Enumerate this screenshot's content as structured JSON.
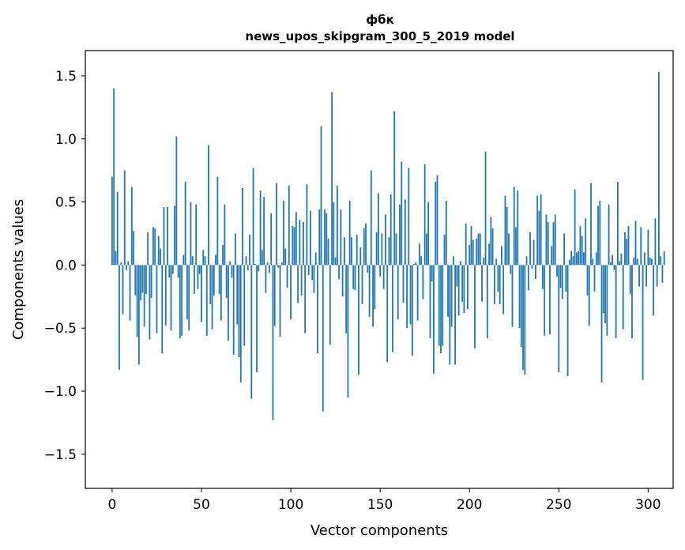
{
  "chart_data": {
    "type": "bar",
    "title": "фбк",
    "subtitle": "news_upos_skipgram_300_5_2019 model",
    "xlabel": "Vector components",
    "ylabel": "Components values",
    "xlim": [
      -15,
      314
    ],
    "ylim": [
      -1.77,
      1.7
    ],
    "xticks": [
      0,
      50,
      100,
      150,
      200,
      250,
      300
    ],
    "yticks": [
      -1.5,
      -1.0,
      -0.5,
      0.0,
      0.5,
      1.0,
      1.5
    ],
    "ytick_labels": [
      "−1.5",
      "−1.0",
      "−0.5",
      "0.0",
      "0.5",
      "1.0",
      "1.5"
    ],
    "bar_color": "#1f77b4",
    "values": [
      0.7,
      1.4,
      0.11,
      0.58,
      -0.83,
      0.02,
      -0.39,
      0.75,
      -0.04,
      0.03,
      -0.44,
      0.62,
      0.27,
      -0.24,
      -0.57,
      -0.79,
      -0.28,
      -0.22,
      -0.49,
      -0.23,
      0.26,
      -0.59,
      -0.26,
      0.3,
      0.29,
      -0.54,
      0.23,
      0.13,
      -0.7,
      0.46,
      -0.48,
      0.46,
      -0.1,
      -0.52,
      -0.07,
      0.47,
      1.02,
      -0.1,
      -0.58,
      -0.56,
      0.08,
      0.66,
      -0.43,
      -0.52,
      0.5,
      0.07,
      -0.23,
      0.48,
      -0.19,
      -0.07,
      -0.45,
      0.12,
      0.07,
      -0.56,
      0.95,
      -0.31,
      -0.51,
      -0.24,
      0.08,
      0.7,
      -0.23,
      -0.44,
      0.16,
      0.48,
      -0.26,
      -0.6,
      0.03,
      -0.1,
      -0.71,
      0.25,
      -0.47,
      -0.73,
      -0.93,
      0.61,
      -0.64,
      0.07,
      -0.04,
      0.24,
      -1.06,
      0.77,
      0.01,
      -0.85,
      -0.05,
      0.59,
      0.12,
      0.54,
      -0.22,
      0.02,
      -0.06,
      0.41,
      -1.23,
      -0.48,
      0.65,
      -0.02,
      -0.57,
      0.02,
      0.51,
      0.13,
      -0.18,
      0.63,
      -0.43,
      0.31,
      0.3,
      0.42,
      -0.3,
      0.36,
      -0.24,
      0.34,
      -0.54,
      0.64,
      -0.08,
      0.43,
      -0.12,
      -0.22,
      0.1,
      -0.7,
      0.44,
      1.1,
      -1.16,
      0.44,
      0.41,
      0.21,
      -0.63,
      1.37,
      0.5,
      0.06,
      0.63,
      -0.11,
      0.44,
      -0.25,
      0.22,
      -0.54,
      -1.05,
      0.51,
      0.22,
      -0.19,
      -0.2,
      0.24,
      -0.87,
      0.14,
      -0.31,
      0.29,
      0.33,
      -0.06,
      -0.41,
      0.75,
      -0.49,
      -0.35,
      0.26,
      0.57,
      -0.09,
      0.25,
      -0.19,
      0.4,
      -0.77,
      0.22,
      0.56,
      -0.69,
      1.22,
      0.25,
      -0.43,
      0.48,
      0.82,
      -0.3,
      0.52,
      -0.5,
      0.77,
      -0.47,
      -0.72,
      0.01,
      0.02,
      -0.44,
      0.17,
      0.07,
      -0.27,
      0.8,
      0.25,
      0.5,
      -0.58,
      -0.13,
      -0.86,
      0.66,
      0.71,
      -0.64,
      -0.7,
      -0.64,
      0.24,
      0.51,
      -0.41,
      -0.79,
      -0.49,
      0.07,
      -0.79,
      -0.17,
      -0.4,
      0.03,
      -0.29,
      -0.38,
      0.33,
      -0.35,
      0.16,
      0.31,
      0.2,
      -0.66,
      0.21,
      0.25,
      0.25,
      -0.29,
      0.06,
      0.9,
      -0.58,
      0.17,
      0.38,
      0.29,
      -0.31,
      0.05,
      -0.21,
      -0.31,
      0.15,
      -0.39,
      0.55,
      0.46,
      0.25,
      -0.07,
      -0.49,
      0.62,
      0.3,
      0.59,
      -0.5,
      -0.65,
      -0.83,
      -0.87,
      0.07,
      -0.2,
      0.26,
      -0.03,
      0.2,
      -0.11,
      0.55,
      0.43,
      0.56,
      -0.19,
      -0.56,
      0.4,
      0.34,
      -0.55,
      0.15,
      0.34,
      0.4,
      -0.09,
      -0.85,
      -0.18,
      -0.27,
      0.25,
      -0.21,
      -0.88,
      0.04,
      0.11,
      0.07,
      0.6,
      0.1,
      0.11,
      0.31,
      0.23,
      0.1,
      0.37,
      -0.24,
      -0.48,
      0.65,
      0.05,
      -0.21,
      0.1,
      0.47,
      0.51,
      -0.93,
      -0.38,
      -0.46,
      -0.56,
      0.48,
      0.02,
      0.08,
      -0.04,
      -0.58,
      0.66,
      0.03,
      0.09,
      -0.51,
      0.26,
      0.21,
      0.31,
      -0.23,
      -0.58,
      0.06,
      0.35,
      0.05,
      -0.17,
      0.3,
      -0.91,
      0.1,
      -0.17,
      0.28,
      0.06,
      0.05,
      -0.4,
      0.37,
      -0.17,
      1.53,
      0.07,
      -0.14,
      0.11
    ]
  }
}
